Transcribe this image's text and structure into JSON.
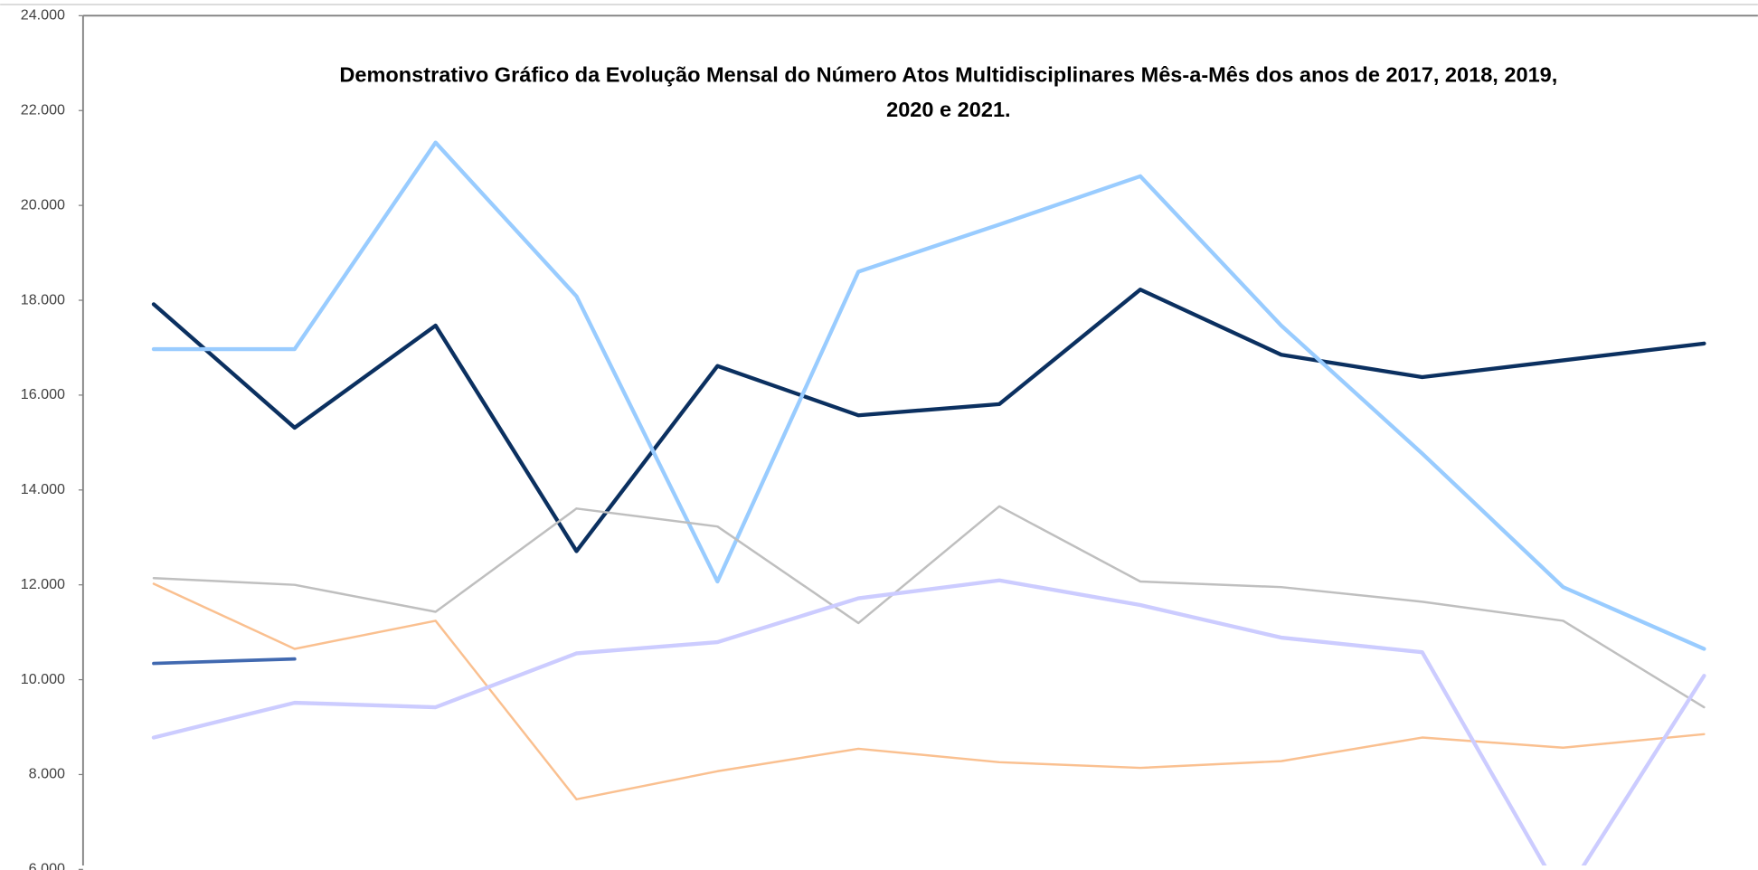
{
  "chart_data": {
    "type": "line",
    "title": [
      "Demonstrativo Gráfico da Evolução Mensal do Número Atos Multidisciplinares Mês-a-Mês dos anos de  2017, 2018, 2019,",
      "2020 e 2021."
    ],
    "categories": [
      null,
      null,
      null,
      null,
      null,
      null,
      null,
      null,
      null,
      null,
      null,
      null
    ],
    "series": [
      {
        "color": "#0b3060",
        "width": 3.5,
        "values": [
          17917,
          15313,
          17467,
          12710,
          16615,
          15574,
          15810,
          18225,
          16852,
          16379,
          16734,
          17088
        ]
      },
      {
        "color": "#99ccff",
        "width": 3.5,
        "values": [
          16970,
          16970,
          21325,
          18083,
          12070,
          18603,
          19597,
          20615,
          17467,
          14769,
          11952,
          10650
        ]
      },
      {
        "color": "#bfbfbf",
        "width": 2,
        "values": [
          12142,
          12000,
          11431,
          13609,
          13230,
          11194,
          13656,
          12070,
          11952,
          11644,
          11242,
          9419
        ]
      },
      {
        "color": "#fac090",
        "width": 2,
        "values": [
          12023,
          10650,
          11242,
          7478,
          8070,
          8544,
          8260,
          8141,
          8283,
          8780,
          8567,
          8851
        ]
      },
      {
        "color": "#ccccff",
        "width": 3.5,
        "values": [
          8780,
          9514,
          9419,
          10555,
          10792,
          11716,
          12094,
          11574,
          10887,
          10579,
          5400,
          10082
        ]
      },
      {
        "color": "#4169b0",
        "width": 3,
        "values": [
          10343,
          10437,
          null,
          null,
          null,
          null,
          null,
          null,
          null,
          null,
          null,
          null
        ]
      }
    ],
    "ylim": [
      6000,
      24000
    ],
    "yticks": [
      {
        "value": 6000,
        "label": "6.000"
      },
      {
        "value": 8000,
        "label": "8.000"
      },
      {
        "value": 10000,
        "label": "10.000"
      },
      {
        "value": 12000,
        "label": "12.000"
      },
      {
        "value": 14000,
        "label": "14.000"
      },
      {
        "value": 16000,
        "label": "16.000"
      },
      {
        "value": 18000,
        "label": "18.000"
      },
      {
        "value": 20000,
        "label": "20.000"
      },
      {
        "value": 22000,
        "label": "22.000"
      },
      {
        "value": 24000,
        "label": "24.000"
      }
    ]
  }
}
